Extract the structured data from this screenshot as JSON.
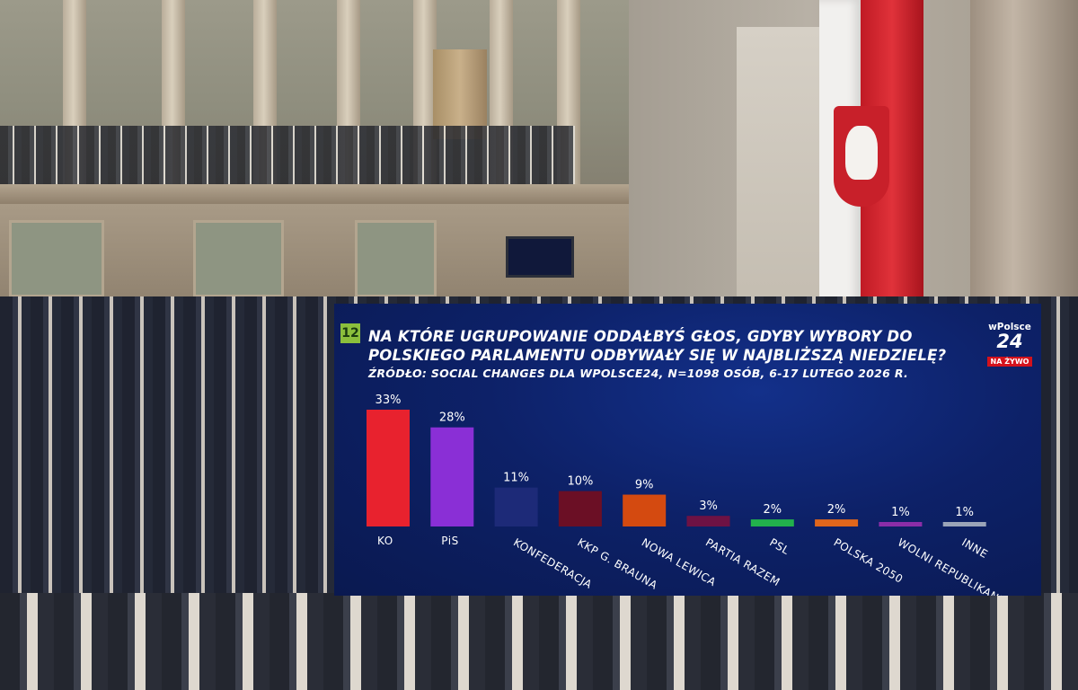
{
  "overlay": {
    "number": "12",
    "question": "NA KTÓRE UGRUPOWANIE ODDAŁBYŚ GŁOS, GDYBY WYBORY DO POLSKIEGO PARLAMENTU ODBYWAŁY SIĘ W NAJBLIŻSZĄ NIEDZIELĘ?",
    "source": "ŹRÓDŁO: SOCIAL CHANGES DLA WPOLSCE24, N=1098 OSÓB, 6-17 LUTEGO 2026 R.",
    "logo_top": "wPolsce",
    "logo_main": "24",
    "logo_live": "NA ŻYWO"
  },
  "chart_data": {
    "type": "bar",
    "categories": [
      "KO",
      "PiS",
      "KONFEDERACJA",
      "KKP G. BRAUNA",
      "NOWA LEWICA",
      "PARTIA RAZEM",
      "PSL",
      "POLSKA 2050",
      "WOLNI REPUBLIKANIE",
      "INNE"
    ],
    "values": [
      33,
      28,
      11,
      10,
      9,
      3,
      2,
      2,
      1,
      1
    ],
    "value_labels": [
      "33%",
      "28%",
      "11%",
      "10%",
      "9%",
      "3%",
      "2%",
      "2%",
      "1%",
      "1%"
    ],
    "colors": [
      "#e8222e",
      "#8a2fd6",
      "#1d2a78",
      "#6b0f25",
      "#d44a10",
      "#6e1244",
      "#22b14c",
      "#e0661c",
      "#8b2da8",
      "#9aa4b8"
    ],
    "ylim": [
      0,
      33
    ],
    "grid": false,
    "legend": "none"
  }
}
